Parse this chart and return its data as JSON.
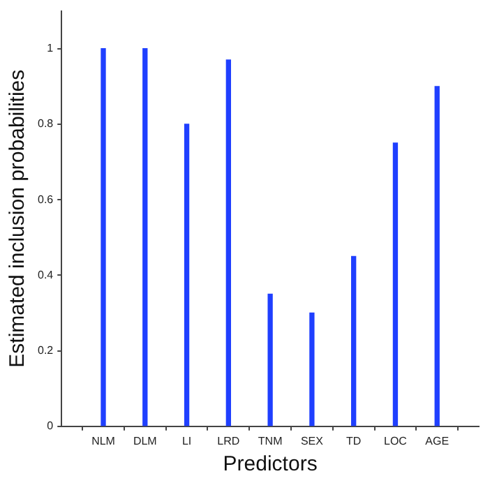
{
  "chart_data": {
    "type": "bar",
    "xlabel": "Predictors",
    "ylabel": "Estimated inclusion probabilities",
    "categories": [
      "NLM",
      "DLM",
      "LI",
      "LRD",
      "TNM",
      "SEX",
      "TD",
      "LOC",
      "AGE"
    ],
    "values": [
      1.0,
      1.0,
      0.8,
      0.97,
      0.35,
      0.3,
      0.45,
      0.75,
      0.9
    ],
    "color": "#1f3fff",
    "ylim": [
      0,
      1.1
    ],
    "yticks": [
      0,
      0.2,
      0.4,
      0.6,
      0.8,
      1
    ],
    "grid": false,
    "legend": false
  }
}
